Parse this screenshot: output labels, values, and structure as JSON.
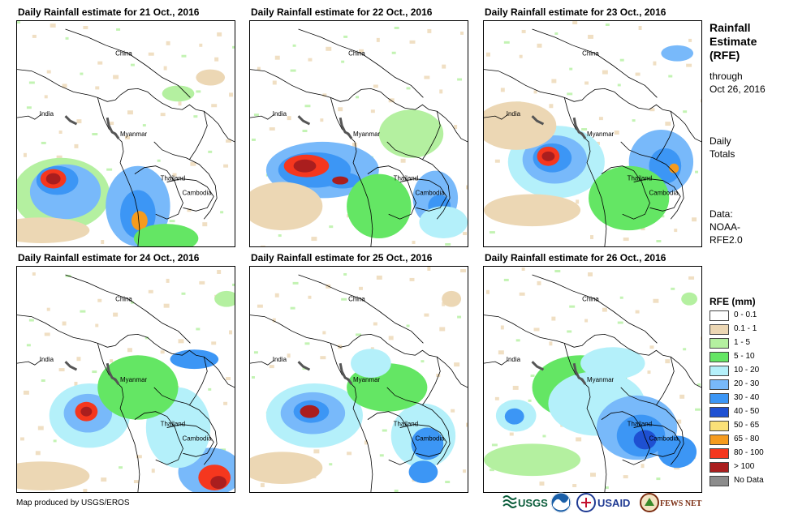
{
  "panels": [
    {
      "title": "Daily Rainfall estimate for 21 Oct., 2016",
      "pattern": 0
    },
    {
      "title": "Daily Rainfall estimate for 22 Oct., 2016",
      "pattern": 1
    },
    {
      "title": "Daily Rainfall estimate for 23 Oct., 2016",
      "pattern": 2
    },
    {
      "title": "Daily Rainfall estimate for 24 Oct., 2016",
      "pattern": 3
    },
    {
      "title": "Daily Rainfall estimate for 25 Oct., 2016",
      "pattern": 4
    },
    {
      "title": "Daily Rainfall estimate for 26 Oct., 2016",
      "pattern": 5
    }
  ],
  "map_labels": {
    "china": "China",
    "india": "India",
    "myanmar": "Myanmar",
    "thailand": "Thailand",
    "cambodia": "Cambodia"
  },
  "side": {
    "title_lines": [
      "Rainfall",
      "Estimate",
      "(RFE)"
    ],
    "through_lines": [
      "through",
      "Oct 26, 2016"
    ],
    "daily_lines": [
      "Daily",
      "Totals"
    ],
    "data_lines": [
      "Data:",
      "NOAA-",
      "RFE2.0"
    ]
  },
  "legend": {
    "title": "RFE (mm)",
    "items": [
      {
        "label": "0 - 0.1",
        "color": "#ffffff"
      },
      {
        "label": "0.1 - 1",
        "color": "#ecd7b4"
      },
      {
        "label": "1 - 5",
        "color": "#b4f0a0"
      },
      {
        "label": "5 - 10",
        "color": "#64e664"
      },
      {
        "label": "10 - 20",
        "color": "#b4f0fa"
      },
      {
        "label": "20 - 30",
        "color": "#78b9fa"
      },
      {
        "label": "30 - 40",
        "color": "#3c96f5"
      },
      {
        "label": "40 - 50",
        "color": "#1e50d2"
      },
      {
        "label": "50 - 65",
        "color": "#fae178"
      },
      {
        "label": "65 - 80",
        "color": "#f59b1e"
      },
      {
        "label": "80 - 100",
        "color": "#f5371e"
      },
      {
        "label": "> 100",
        "color": "#aa1e1e"
      },
      {
        "label": "No Data",
        "color": "#8c8c8c"
      }
    ]
  },
  "credit": "Map produced by USGS/EROS",
  "logos": [
    "USGS",
    "NOAA",
    "USAID",
    "FEWS NET"
  ]
}
